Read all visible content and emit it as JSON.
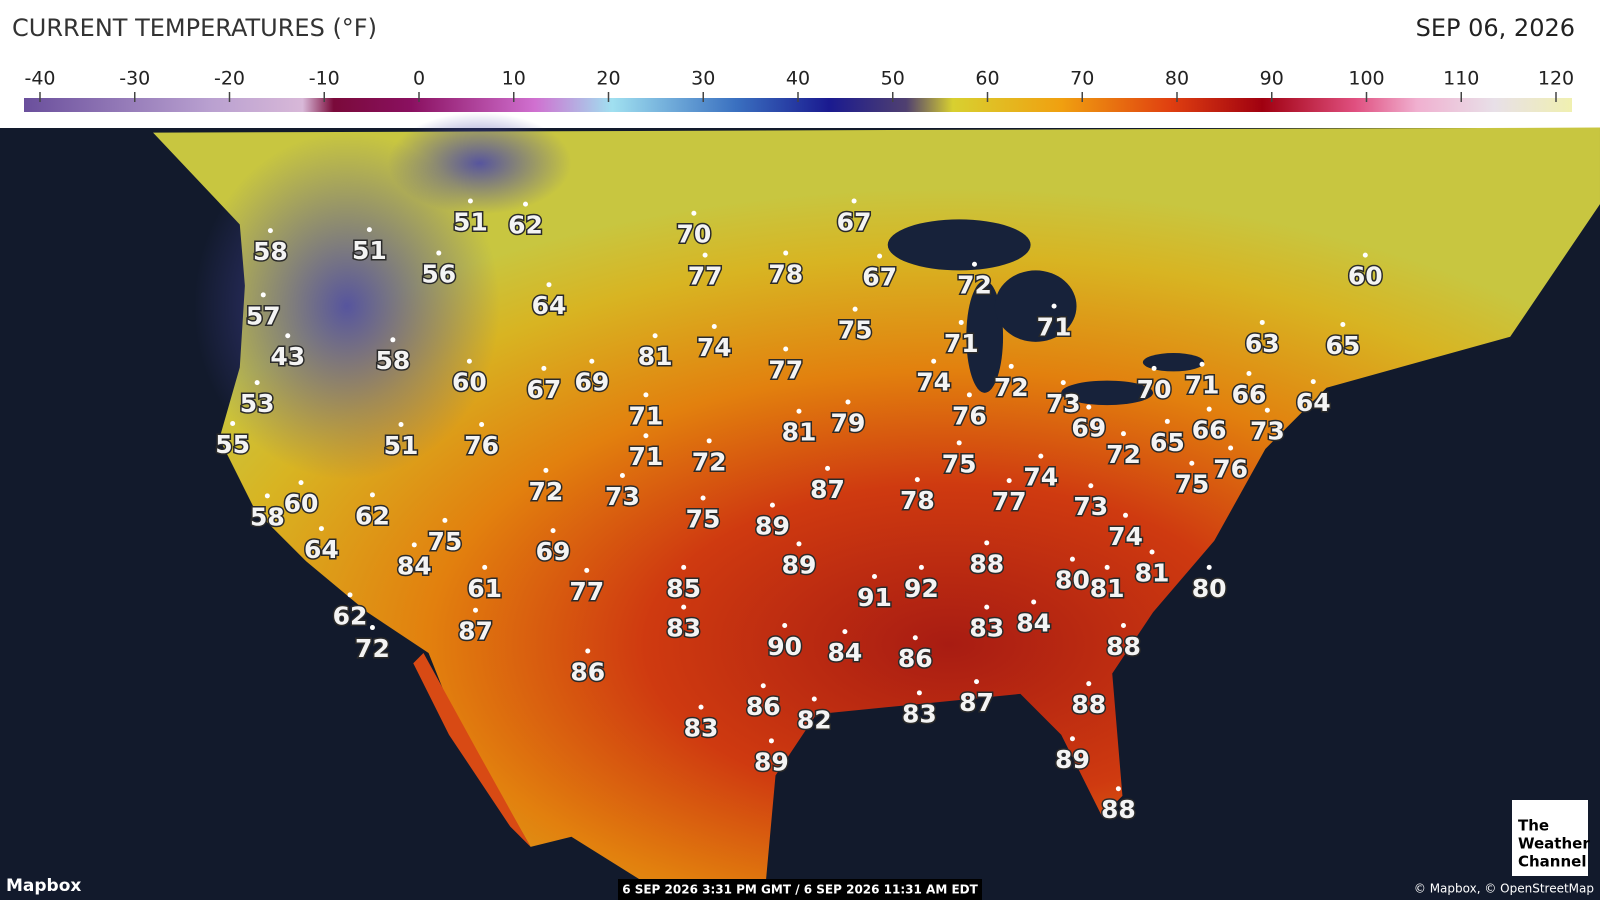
{
  "header": {
    "title": "CURRENT TEMPERATURES (°F)",
    "date": "SEP 06, 2026"
  },
  "colorbar": {
    "ticks": [
      -40,
      -30,
      -20,
      -10,
      0,
      10,
      20,
      30,
      40,
      50,
      60,
      70,
      80,
      90,
      100,
      110,
      120
    ]
  },
  "map": {
    "temperatures": [
      58,
      51,
      51,
      62,
      56,
      70,
      67,
      57,
      77,
      78,
      67,
      72,
      64,
      43,
      58,
      81,
      74,
      75,
      71,
      71,
      60,
      63,
      65,
      53,
      60,
      67,
      69,
      77,
      74,
      72,
      73,
      70,
      71,
      66,
      64,
      55,
      51,
      76,
      71,
      81,
      79,
      76,
      69,
      65,
      66,
      73,
      71,
      72,
      75,
      72,
      76,
      75,
      58,
      60,
      62,
      72,
      73,
      87,
      78,
      77,
      74,
      73,
      75,
      89,
      74,
      64,
      75,
      84,
      69,
      89,
      88,
      80,
      81,
      81,
      80,
      61,
      77,
      85,
      91,
      92,
      62,
      72,
      87,
      83,
      83,
      84,
      88,
      90,
      84,
      86,
      86,
      86,
      82,
      83,
      87,
      88,
      83,
      89,
      89,
      88
    ],
    "provider": "Mapbox",
    "timestamp": "6 SEP 2026 3:31 PM GMT / 6 SEP 2026 11:31 AM EDT",
    "attribution": "© Mapbox, © OpenStreetMap",
    "logo": [
      "The",
      "Weather",
      "Channel"
    ]
  }
}
